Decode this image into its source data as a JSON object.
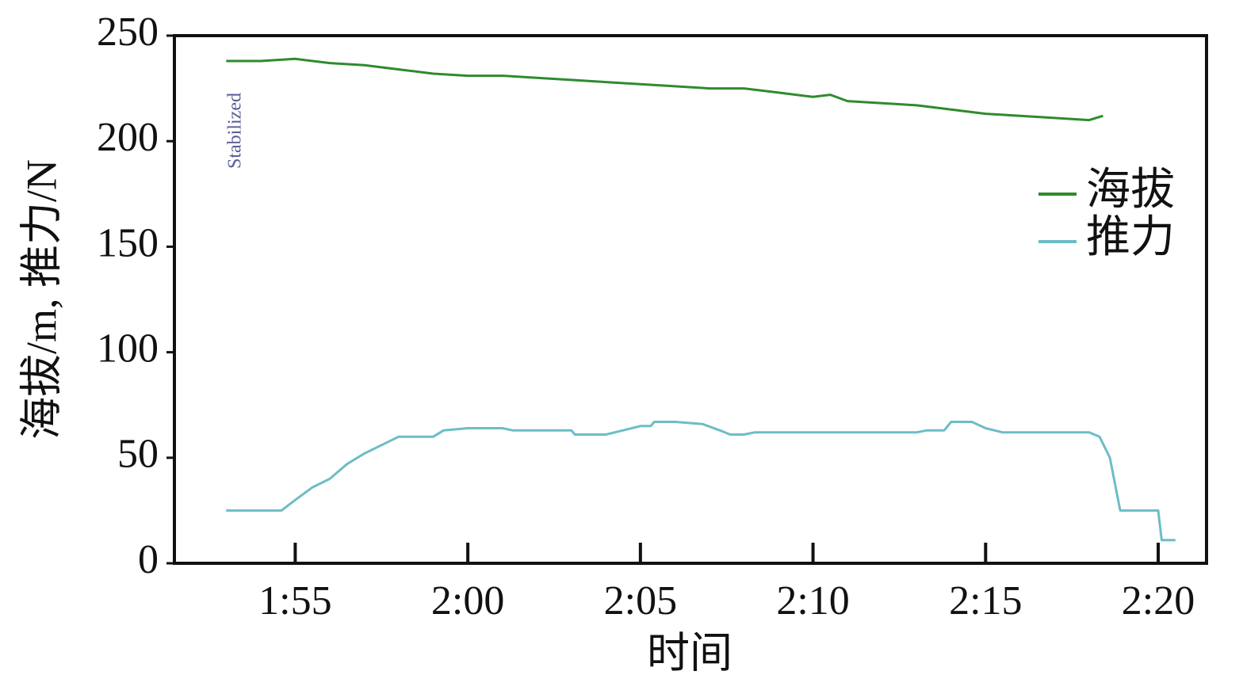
{
  "chart_data": {
    "type": "line",
    "y_label": "海拔/m, 推力/N",
    "x_label": "时间",
    "annotation": "Stabilized",
    "xlim": [
      111.5,
      141.4
    ],
    "xticks": [
      {
        "value": 115,
        "label": "1:55"
      },
      {
        "value": 120,
        "label": "2:00"
      },
      {
        "value": 125,
        "label": "2:05"
      },
      {
        "value": 130,
        "label": "2:10"
      },
      {
        "value": 135,
        "label": "2:15"
      },
      {
        "value": 140,
        "label": "2:20"
      }
    ],
    "ylim": [
      0,
      250
    ],
    "yticks": [
      0,
      50,
      100,
      150,
      200,
      250
    ],
    "legend": "right",
    "series": [
      {
        "name": "海拔",
        "color": "#2e8b2e",
        "x": [
          113.0,
          114.0,
          115.0,
          116.0,
          117.0,
          118.0,
          118.5,
          119.0,
          120.0,
          121.0,
          122.0,
          123.0,
          124.0,
          125.0,
          126.0,
          127.0,
          128.0,
          129.0,
          130.0,
          130.5,
          131.0,
          132.0,
          133.0,
          134.0,
          135.0,
          136.0,
          137.0,
          138.0,
          138.4
        ],
        "values": [
          238,
          238,
          239,
          237,
          236,
          234,
          233,
          232,
          231,
          231,
          230,
          229,
          228,
          227,
          226,
          225,
          225,
          223,
          221,
          222,
          219,
          218,
          217,
          215,
          213,
          212,
          211,
          210,
          212
        ]
      },
      {
        "name": "推力",
        "color": "#6cbdc6",
        "x": [
          113.0,
          114.6,
          115.0,
          115.5,
          116.0,
          116.5,
          117.0,
          117.5,
          118.0,
          119.0,
          119.3,
          120.0,
          121.0,
          121.3,
          123.0,
          123.1,
          124.0,
          124.5,
          125.0,
          125.3,
          125.4,
          126.0,
          126.8,
          127.3,
          127.6,
          128.0,
          128.3,
          130.0,
          131.0,
          133.0,
          133.3,
          133.8,
          134.0,
          134.6,
          135.0,
          135.5,
          138.0,
          138.3,
          138.6,
          138.9,
          140.0,
          140.1,
          140.5
        ],
        "values": [
          25,
          25,
          30,
          36,
          40,
          47,
          52,
          56,
          60,
          60,
          63,
          64,
          64,
          63,
          63,
          61,
          61,
          63,
          65,
          65,
          67,
          67,
          66,
          63,
          61,
          61,
          62,
          62,
          62,
          62,
          63,
          63,
          67,
          67,
          64,
          62,
          62,
          60,
          50,
          25,
          25,
          11,
          11
        ]
      }
    ]
  }
}
